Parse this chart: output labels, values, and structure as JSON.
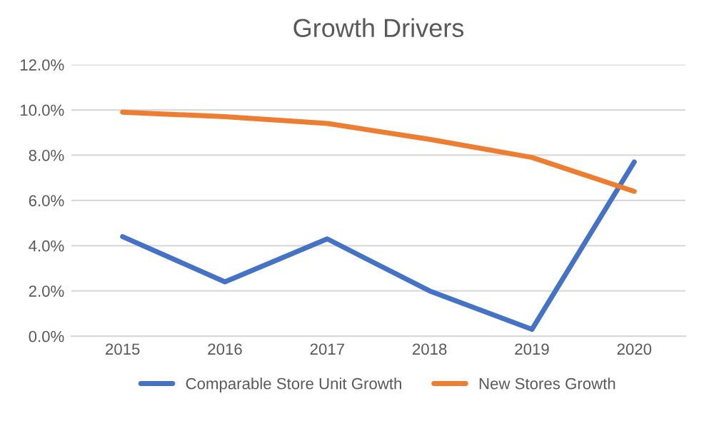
{
  "chart_data": {
    "type": "line",
    "title": "Growth Drivers",
    "categories": [
      "2015",
      "2016",
      "2017",
      "2018",
      "2019",
      "2020"
    ],
    "series": [
      {
        "name": "Comparable Store Unit Growth",
        "color": "#4472c4",
        "values": [
          4.4,
          2.4,
          4.3,
          2.0,
          0.3,
          7.7
        ]
      },
      {
        "name": "New Stores Growth",
        "color": "#ed7d31",
        "values": [
          9.9,
          9.7,
          9.4,
          8.7,
          7.9,
          6.4
        ]
      }
    ],
    "ylim": [
      0,
      12
    ],
    "yticks": [
      {
        "value": 0,
        "label": "0.0%"
      },
      {
        "value": 2,
        "label": "2.0%"
      },
      {
        "value": 4,
        "label": "4.0%"
      },
      {
        "value": 6,
        "label": "6.0%"
      },
      {
        "value": 8,
        "label": "8.0%"
      },
      {
        "value": 10,
        "label": "10.0%"
      },
      {
        "value": 12,
        "label": "12.0%"
      }
    ],
    "grid": "y",
    "legend": "bottom",
    "marker": "none",
    "line_style": "solid"
  }
}
